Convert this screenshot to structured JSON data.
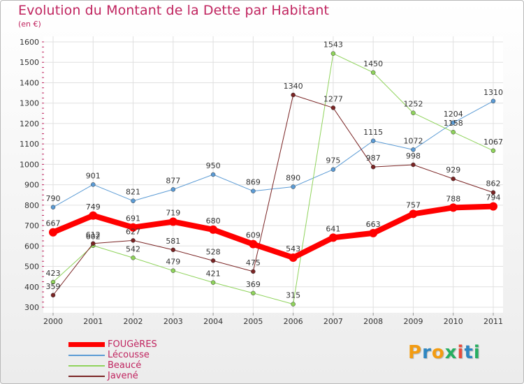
{
  "header": {
    "title": "Evolution du Montant de la Dette par Habitant",
    "subtitle": "(en €)"
  },
  "logo": {
    "text": "Proxiti",
    "letters": [
      "P",
      "r",
      "o",
      "x",
      "i",
      "t",
      "i"
    ],
    "colors": [
      "#f39c12",
      "#2e86c1",
      "#f39c12",
      "#27ae60",
      "#e74c3c",
      "#2e86c1",
      "#27ae60"
    ]
  },
  "chart_data": {
    "type": "line",
    "categories": [
      "2000",
      "2001",
      "2002",
      "2003",
      "2004",
      "2005",
      "2006",
      "2007",
      "2008",
      "2009",
      "2010",
      "2011"
    ],
    "ylim": [
      300,
      1600
    ],
    "yticks": [
      300,
      400,
      500,
      600,
      700,
      800,
      900,
      1000,
      1100,
      1200,
      1300,
      1400,
      1500,
      1600
    ],
    "grid": true,
    "legend_position": "bottom-left",
    "series": [
      {
        "name": "Lécousse",
        "color": "#5b9bd5",
        "width": 1,
        "values": [
          790,
          901,
          821,
          877,
          950,
          869,
          890,
          975,
          1115,
          1072,
          1204,
          1310
        ]
      },
      {
        "name": "Beaucé",
        "color": "#8fd35b",
        "width": 1,
        "values": [
          423,
          602,
          542,
          479,
          421,
          369,
          315,
          1543,
          1450,
          1252,
          1158,
          1067
        ]
      },
      {
        "name": "Javené",
        "color": "#7a2424",
        "width": 1,
        "values": [
          359,
          612,
          627,
          581,
          528,
          475,
          1340,
          1277,
          987,
          998,
          929,
          862
        ]
      },
      {
        "name": "FOUGèRES",
        "color": "#ff0000",
        "width": 8,
        "values": [
          667,
          749,
          691,
          719,
          680,
          609,
          543,
          641,
          663,
          757,
          788,
          794
        ]
      }
    ],
    "legend_order": [
      "FOUGèRES",
      "Lécousse",
      "Beaucé",
      "Javené"
    ]
  }
}
